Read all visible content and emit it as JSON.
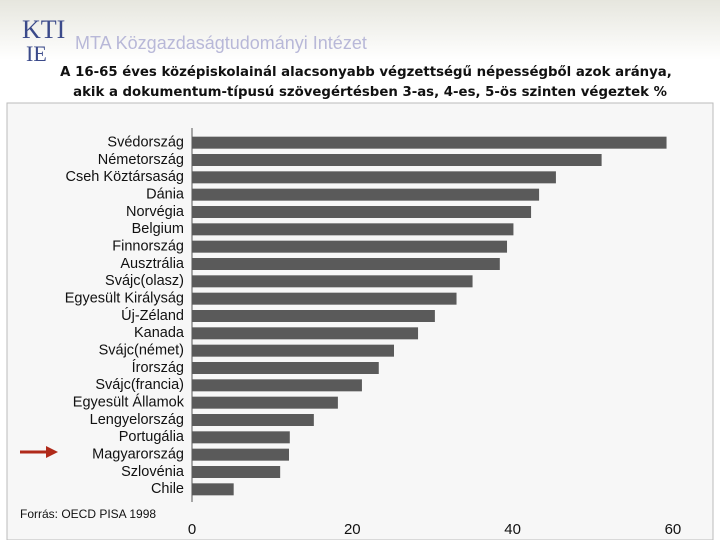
{
  "header": {
    "logo": [
      "KTI",
      "IE"
    ],
    "org": "MTA Közgazdaságtudományi Intézet"
  },
  "chart_data": {
    "type": "bar",
    "orientation": "horizontal",
    "title": [
      "A 16-65 éves középiskolainál alacsonyabb végzettségű népességből azok aránya,",
      "akik a dokumentum-típusú szövegértésben 3-as, 4-es, 5-ös szinten végeztek %"
    ],
    "source": "Forrás: OECD PISA 1998",
    "categories": [
      "Svédország",
      "Németország",
      "Cseh Köztársaság",
      "Dánia",
      "Norvégia",
      "Belgium",
      "Finnország",
      "Ausztrália",
      "Svájc(olasz)",
      "Egyesült Királyság",
      "Új-Zéland",
      "Kanada",
      "Svájc(német)",
      "Írország",
      "Svájc(francia)",
      "Egyesült Államok",
      "Lengyelország",
      "Portugália",
      "Magyarország",
      "Szlovénia",
      "Chile"
    ],
    "values": [
      59.2,
      51.1,
      45.4,
      43.3,
      42.3,
      40.1,
      39.3,
      38.4,
      35.0,
      33.0,
      30.3,
      28.2,
      25.2,
      23.3,
      21.2,
      18.2,
      15.2,
      12.2,
      12.1,
      11.0,
      5.2
    ],
    "color": "#5a5a5a",
    "xlim": [
      0,
      63
    ],
    "xticks": [
      0,
      20,
      40,
      60
    ],
    "grid": false
  }
}
